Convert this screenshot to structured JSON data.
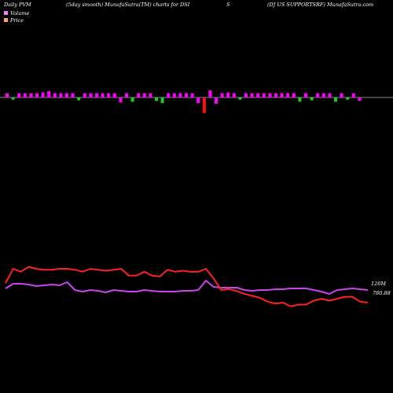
{
  "header": {
    "left": "Daily PVM",
    "mid": "(5day smooth) MunafaSutra(TM) charts for DSI",
    "s": "S",
    "right": "(DJ US SUPPORTSRF) MunafaSutra.com"
  },
  "legend": [
    {
      "name": "Volume",
      "color": "#ee82ee"
    },
    {
      "name": "Price",
      "color": "#ffa07a"
    }
  ],
  "labels": {
    "volume_last": "126M",
    "price_last": "780.88"
  },
  "colors": {
    "bar_pos": "#ff00ff",
    "bar_neg": "#22cc22",
    "bar_red": "#ff1111",
    "volume_line": "#cc44ee",
    "price_line": "#ff2222",
    "zero_line": "#888888"
  },
  "chart_data": {
    "type": "line",
    "bars": [
      {
        "v": 0.6,
        "c": "pos"
      },
      {
        "v": -0.3,
        "c": "neg"
      },
      {
        "v": 0.6,
        "c": "pos"
      },
      {
        "v": 0.6,
        "c": "pos"
      },
      {
        "v": 0.6,
        "c": "pos"
      },
      {
        "v": 0.6,
        "c": "pos"
      },
      {
        "v": 0.7,
        "c": "pos"
      },
      {
        "v": 0.9,
        "c": "pos"
      },
      {
        "v": 0.6,
        "c": "pos"
      },
      {
        "v": 0.6,
        "c": "pos"
      },
      {
        "v": 0.6,
        "c": "pos"
      },
      {
        "v": 0.6,
        "c": "pos"
      },
      {
        "v": -0.4,
        "c": "neg"
      },
      {
        "v": 0.6,
        "c": "pos"
      },
      {
        "v": 0.6,
        "c": "pos"
      },
      {
        "v": 0.6,
        "c": "pos"
      },
      {
        "v": 0.6,
        "c": "pos"
      },
      {
        "v": 0.6,
        "c": "pos"
      },
      {
        "v": 0.6,
        "c": "pos"
      },
      {
        "v": -0.7,
        "c": "pos"
      },
      {
        "v": 0.6,
        "c": "pos"
      },
      {
        "v": -0.6,
        "c": "neg"
      },
      {
        "v": 0.6,
        "c": "pos"
      },
      {
        "v": 0.6,
        "c": "pos"
      },
      {
        "v": 0.6,
        "c": "pos"
      },
      {
        "v": -0.5,
        "c": "neg"
      },
      {
        "v": -0.8,
        "c": "neg"
      },
      {
        "v": 0.6,
        "c": "pos"
      },
      {
        "v": 0.6,
        "c": "pos"
      },
      {
        "v": 0.6,
        "c": "pos"
      },
      {
        "v": 0.6,
        "c": "pos"
      },
      {
        "v": 0.6,
        "c": "pos"
      },
      {
        "v": -0.8,
        "c": "pos"
      },
      {
        "v": -2.2,
        "c": "red"
      },
      {
        "v": 1.0,
        "c": "pos"
      },
      {
        "v": -0.9,
        "c": "pos"
      },
      {
        "v": 0.6,
        "c": "pos"
      },
      {
        "v": 0.7,
        "c": "pos"
      },
      {
        "v": 0.6,
        "c": "pos"
      },
      {
        "v": -0.3,
        "c": "neg"
      },
      {
        "v": 0.6,
        "c": "pos"
      },
      {
        "v": 0.6,
        "c": "pos"
      },
      {
        "v": 0.6,
        "c": "pos"
      },
      {
        "v": 0.6,
        "c": "pos"
      },
      {
        "v": 0.6,
        "c": "pos"
      },
      {
        "v": 0.6,
        "c": "pos"
      },
      {
        "v": 0.6,
        "c": "pos"
      },
      {
        "v": 0.6,
        "c": "pos"
      },
      {
        "v": 0.6,
        "c": "pos"
      },
      {
        "v": -0.6,
        "c": "neg"
      },
      {
        "v": 0.6,
        "c": "pos"
      },
      {
        "v": -0.4,
        "c": "neg"
      },
      {
        "v": 0.6,
        "c": "pos"
      },
      {
        "v": 0.6,
        "c": "pos"
      },
      {
        "v": 0.6,
        "c": "pos"
      },
      {
        "v": -0.6,
        "c": "neg"
      },
      {
        "v": 0.6,
        "c": "pos"
      },
      {
        "v": -0.3,
        "c": "neg"
      },
      {
        "v": 0.6,
        "c": "pos"
      },
      {
        "v": -0.5,
        "c": "pos"
      }
    ],
    "volume_series": [
      88,
      94,
      94,
      93,
      91,
      92,
      93,
      92,
      96,
      86,
      84,
      86,
      85,
      83,
      86,
      85,
      84,
      84,
      86,
      85,
      84,
      84,
      84,
      85,
      85,
      86,
      98,
      90,
      89,
      89,
      89,
      86,
      85,
      86,
      86,
      87,
      87,
      88,
      88,
      88,
      86,
      84,
      81,
      86,
      87,
      88,
      87,
      86
    ],
    "price_series": [
      800,
      815,
      812,
      817,
      815,
      814,
      814,
      815,
      815,
      814,
      812,
      815,
      814,
      813,
      814,
      815,
      808,
      808,
      812,
      808,
      807,
      814,
      812,
      813,
      812,
      812,
      815,
      805,
      793,
      794,
      792,
      789,
      787,
      785,
      781,
      779,
      780,
      776,
      778,
      778,
      782,
      784,
      782,
      784,
      786,
      786,
      781,
      780
    ]
  }
}
